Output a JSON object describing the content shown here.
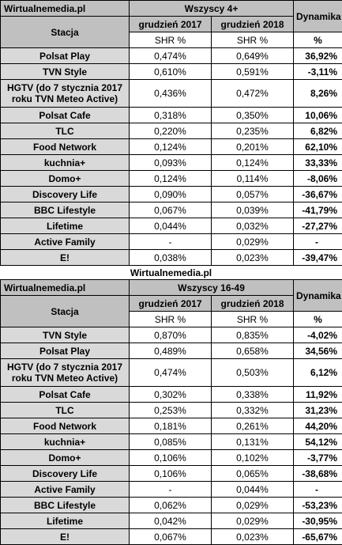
{
  "watermark": "Wirtualnemedia.pl",
  "tables": [
    {
      "brand": "Wirtualnemedia.pl",
      "group": "Wszyscy 4+",
      "station_header": "Stacja",
      "period1": "grudzień 2017",
      "period2": "grudzień 2018",
      "unit": "SHR %",
      "dynamics_header": "Dynamika",
      "dynamics_unit": "%",
      "rows": [
        {
          "station": "Polsat Play",
          "v2017": "0,474%",
          "v2018": "0,649%",
          "dyn": "36,92%"
        },
        {
          "station": "TVN Style",
          "v2017": "0,610%",
          "v2018": "0,591%",
          "dyn": "-3,11%"
        },
        {
          "station": "HGTV (do 7 stycznia 2017 roku TVN Meteo Active)",
          "v2017": "0,436%",
          "v2018": "0,472%",
          "dyn": "8,26%"
        },
        {
          "station": "Polsat Cafe",
          "v2017": "0,318%",
          "v2018": "0,350%",
          "dyn": "10,06%"
        },
        {
          "station": "TLC",
          "v2017": "0,220%",
          "v2018": "0,235%",
          "dyn": "6,82%"
        },
        {
          "station": "Food Network",
          "v2017": "0,124%",
          "v2018": "0,201%",
          "dyn": "62,10%"
        },
        {
          "station": "kuchnia+",
          "v2017": "0,093%",
          "v2018": "0,124%",
          "dyn": "33,33%"
        },
        {
          "station": "Domo+",
          "v2017": "0,124%",
          "v2018": "0,114%",
          "dyn": "-8,06%"
        },
        {
          "station": "Discovery Life",
          "v2017": "0,090%",
          "v2018": "0,057%",
          "dyn": "-36,67%"
        },
        {
          "station": "BBC Lifestyle",
          "v2017": "0,067%",
          "v2018": "0,039%",
          "dyn": "-41,79%"
        },
        {
          "station": "Lifetime",
          "v2017": "0,044%",
          "v2018": "0,032%",
          "dyn": "-27,27%"
        },
        {
          "station": "Active Family",
          "v2017": "-",
          "v2018": "0,029%",
          "dyn": "-"
        },
        {
          "station": "E!",
          "v2017": "0,038%",
          "v2018": "0,023%",
          "dyn": "-39,47%"
        }
      ]
    },
    {
      "brand": "Wirtualnemedia.pl",
      "group": "Wszyscy 16-49",
      "station_header": "Stacja",
      "period1": "grudzień 2017",
      "period2": "grudzień 2018",
      "unit": "SHR %",
      "dynamics_header": "Dynamika",
      "dynamics_unit": "%",
      "rows": [
        {
          "station": "TVN Style",
          "v2017": "0,870%",
          "v2018": "0,835%",
          "dyn": "-4,02%"
        },
        {
          "station": "Polsat Play",
          "v2017": "0,489%",
          "v2018": "0,658%",
          "dyn": "34,56%"
        },
        {
          "station": "HGTV (do 7 stycznia 2017 roku TVN Meteo Active)",
          "v2017": "0,474%",
          "v2018": "0,503%",
          "dyn": "6,12%"
        },
        {
          "station": "Polsat Cafe",
          "v2017": "0,302%",
          "v2018": "0,338%",
          "dyn": "11,92%"
        },
        {
          "station": "TLC",
          "v2017": "0,253%",
          "v2018": "0,332%",
          "dyn": "31,23%"
        },
        {
          "station": "Food Network",
          "v2017": "0,181%",
          "v2018": "0,261%",
          "dyn": "44,20%"
        },
        {
          "station": "kuchnia+",
          "v2017": "0,085%",
          "v2018": "0,131%",
          "dyn": "54,12%"
        },
        {
          "station": "Domo+",
          "v2017": "0,106%",
          "v2018": "0,102%",
          "dyn": "-3,77%"
        },
        {
          "station": "Discovery Life",
          "v2017": "0,106%",
          "v2018": "0,065%",
          "dyn": "-38,68%"
        },
        {
          "station": "Active Family",
          "v2017": "-",
          "v2018": "0,044%",
          "dyn": "-"
        },
        {
          "station": "BBC Lifestyle",
          "v2017": "0,062%",
          "v2018": "0,029%",
          "dyn": "-53,23%"
        },
        {
          "station": "Lifetime",
          "v2017": "0,042%",
          "v2018": "0,029%",
          "dyn": "-30,95%"
        },
        {
          "station": "E!",
          "v2017": "0,067%",
          "v2018": "0,023%",
          "dyn": "-65,67%"
        }
      ]
    }
  ]
}
